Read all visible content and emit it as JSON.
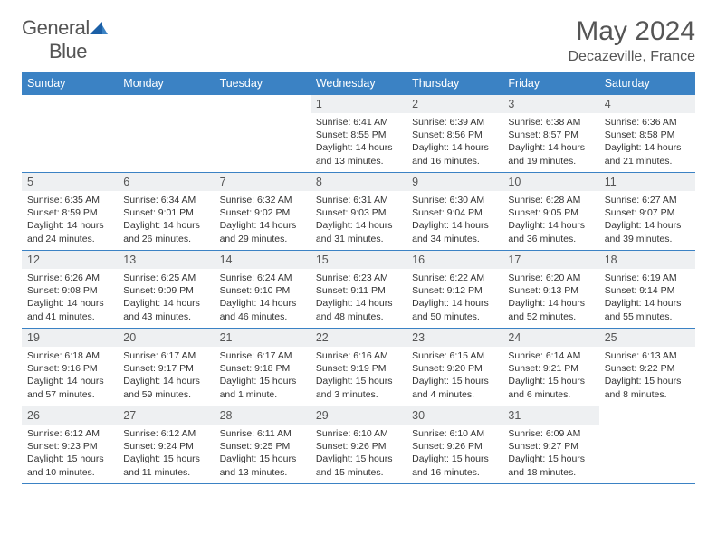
{
  "logo": {
    "word1": "General",
    "word2": "Blue"
  },
  "header": {
    "title": "May 2024",
    "location": "Decazeville, France"
  },
  "colors": {
    "header_bg": "#3b82c4",
    "header_text": "#ffffff",
    "daynum_bg": "#eef0f2",
    "body_text": "#333333",
    "title_text": "#555555",
    "rule": "#3b82c4"
  },
  "weekdays": [
    "Sunday",
    "Monday",
    "Tuesday",
    "Wednesday",
    "Thursday",
    "Friday",
    "Saturday"
  ],
  "weeks": [
    [
      null,
      null,
      null,
      {
        "n": "1",
        "sr": "6:41 AM",
        "ss": "8:55 PM",
        "dl": "14 hours and 13 minutes."
      },
      {
        "n": "2",
        "sr": "6:39 AM",
        "ss": "8:56 PM",
        "dl": "14 hours and 16 minutes."
      },
      {
        "n": "3",
        "sr": "6:38 AM",
        "ss": "8:57 PM",
        "dl": "14 hours and 19 minutes."
      },
      {
        "n": "4",
        "sr": "6:36 AM",
        "ss": "8:58 PM",
        "dl": "14 hours and 21 minutes."
      }
    ],
    [
      {
        "n": "5",
        "sr": "6:35 AM",
        "ss": "8:59 PM",
        "dl": "14 hours and 24 minutes."
      },
      {
        "n": "6",
        "sr": "6:34 AM",
        "ss": "9:01 PM",
        "dl": "14 hours and 26 minutes."
      },
      {
        "n": "7",
        "sr": "6:32 AM",
        "ss": "9:02 PM",
        "dl": "14 hours and 29 minutes."
      },
      {
        "n": "8",
        "sr": "6:31 AM",
        "ss": "9:03 PM",
        "dl": "14 hours and 31 minutes."
      },
      {
        "n": "9",
        "sr": "6:30 AM",
        "ss": "9:04 PM",
        "dl": "14 hours and 34 minutes."
      },
      {
        "n": "10",
        "sr": "6:28 AM",
        "ss": "9:05 PM",
        "dl": "14 hours and 36 minutes."
      },
      {
        "n": "11",
        "sr": "6:27 AM",
        "ss": "9:07 PM",
        "dl": "14 hours and 39 minutes."
      }
    ],
    [
      {
        "n": "12",
        "sr": "6:26 AM",
        "ss": "9:08 PM",
        "dl": "14 hours and 41 minutes."
      },
      {
        "n": "13",
        "sr": "6:25 AM",
        "ss": "9:09 PM",
        "dl": "14 hours and 43 minutes."
      },
      {
        "n": "14",
        "sr": "6:24 AM",
        "ss": "9:10 PM",
        "dl": "14 hours and 46 minutes."
      },
      {
        "n": "15",
        "sr": "6:23 AM",
        "ss": "9:11 PM",
        "dl": "14 hours and 48 minutes."
      },
      {
        "n": "16",
        "sr": "6:22 AM",
        "ss": "9:12 PM",
        "dl": "14 hours and 50 minutes."
      },
      {
        "n": "17",
        "sr": "6:20 AM",
        "ss": "9:13 PM",
        "dl": "14 hours and 52 minutes."
      },
      {
        "n": "18",
        "sr": "6:19 AM",
        "ss": "9:14 PM",
        "dl": "14 hours and 55 minutes."
      }
    ],
    [
      {
        "n": "19",
        "sr": "6:18 AM",
        "ss": "9:16 PM",
        "dl": "14 hours and 57 minutes."
      },
      {
        "n": "20",
        "sr": "6:17 AM",
        "ss": "9:17 PM",
        "dl": "14 hours and 59 minutes."
      },
      {
        "n": "21",
        "sr": "6:17 AM",
        "ss": "9:18 PM",
        "dl": "15 hours and 1 minute."
      },
      {
        "n": "22",
        "sr": "6:16 AM",
        "ss": "9:19 PM",
        "dl": "15 hours and 3 minutes."
      },
      {
        "n": "23",
        "sr": "6:15 AM",
        "ss": "9:20 PM",
        "dl": "15 hours and 4 minutes."
      },
      {
        "n": "24",
        "sr": "6:14 AM",
        "ss": "9:21 PM",
        "dl": "15 hours and 6 minutes."
      },
      {
        "n": "25",
        "sr": "6:13 AM",
        "ss": "9:22 PM",
        "dl": "15 hours and 8 minutes."
      }
    ],
    [
      {
        "n": "26",
        "sr": "6:12 AM",
        "ss": "9:23 PM",
        "dl": "15 hours and 10 minutes."
      },
      {
        "n": "27",
        "sr": "6:12 AM",
        "ss": "9:24 PM",
        "dl": "15 hours and 11 minutes."
      },
      {
        "n": "28",
        "sr": "6:11 AM",
        "ss": "9:25 PM",
        "dl": "15 hours and 13 minutes."
      },
      {
        "n": "29",
        "sr": "6:10 AM",
        "ss": "9:26 PM",
        "dl": "15 hours and 15 minutes."
      },
      {
        "n": "30",
        "sr": "6:10 AM",
        "ss": "9:26 PM",
        "dl": "15 hours and 16 minutes."
      },
      {
        "n": "31",
        "sr": "6:09 AM",
        "ss": "9:27 PM",
        "dl": "15 hours and 18 minutes."
      },
      null
    ]
  ],
  "labels": {
    "sunrise": "Sunrise:",
    "sunset": "Sunset:",
    "daylight": "Daylight:"
  }
}
